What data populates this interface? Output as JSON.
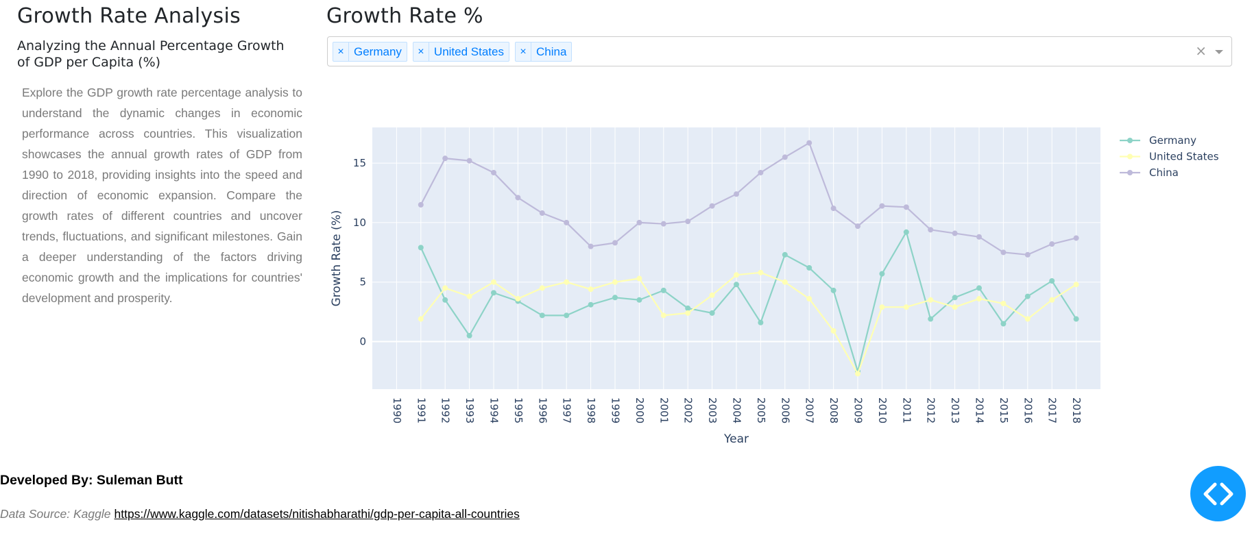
{
  "sidebar": {
    "title": "Growth Rate Analysis",
    "subtitle": "Analyzing the Annual Percentage Growth of GDP per Capita (%)",
    "description": "Explore the GDP growth rate percentage analysis to understand the dynamic changes in economic performance across countries. This visualization showcases the annual growth rates of GDP from 1990 to 2018, providing insights into the speed and direction of economic expansion. Compare the growth rates of different countries and uncover trends, fluctuations, and significant milestones. Gain a deeper understanding of the factors driving economic growth and the implications for countries' development and prosperity."
  },
  "main": {
    "title": "Growth Rate %",
    "selector": {
      "selected": [
        "Germany",
        "United States",
        "China"
      ],
      "remove_glyph": "×",
      "clear_glyph": "×"
    }
  },
  "footer": {
    "developed_by": "Developed By: Suleman Butt",
    "source_label": "Data Source: Kaggle",
    "source_link": "https://www.kaggle.com/datasets/nitishabharathi/gdp-per-capita-all-countries"
  },
  "icons": {
    "fab": "code-brackets-icon",
    "caret": "chevron-down-icon",
    "clear": "close-icon"
  },
  "colors": {
    "germany": "#8dd3c7",
    "united_states": "#ffffb3",
    "china": "#bebada",
    "plot_bg": "#e5ecf6",
    "chip_text": "#007eff",
    "fab": "#119dff"
  },
  "chart_data": {
    "type": "line",
    "xlabel": "Year",
    "ylabel": "Growth Rate (%)",
    "x": [
      1990,
      1991,
      1992,
      1993,
      1994,
      1995,
      1996,
      1997,
      1998,
      1999,
      2000,
      2001,
      2002,
      2003,
      2004,
      2005,
      2006,
      2007,
      2008,
      2009,
      2010,
      2011,
      2012,
      2013,
      2014,
      2015,
      2016,
      2017,
      2018
    ],
    "xlim": [
      1989.0,
      2019.0
    ],
    "ylim": [
      -4.0,
      18.0
    ],
    "yticks": [
      0,
      5,
      10,
      15
    ],
    "grid": true,
    "legend_position": "top-right",
    "series": [
      {
        "name": "Germany",
        "color": "#8dd3c7",
        "x": [
          1991,
          1992,
          1993,
          1994,
          1995,
          1996,
          1997,
          1998,
          1999,
          2000,
          2001,
          2002,
          2003,
          2004,
          2005,
          2006,
          2007,
          2008,
          2009,
          2010,
          2011,
          2012,
          2013,
          2014,
          2015,
          2016,
          2017,
          2018
        ],
        "values": [
          7.9,
          3.5,
          0.5,
          4.1,
          3.4,
          2.2,
          2.2,
          3.1,
          3.7,
          3.5,
          4.3,
          2.8,
          2.4,
          4.8,
          1.6,
          7.3,
          6.2,
          4.3,
          -2.5,
          5.7,
          9.2,
          1.9,
          3.7,
          4.5,
          1.5,
          3.8,
          5.1,
          1.9
        ]
      },
      {
        "name": "United States",
        "color": "#ffffb3",
        "x": [
          1991,
          1992,
          1993,
          1994,
          1995,
          1996,
          1997,
          1998,
          1999,
          2000,
          2001,
          2002,
          2003,
          2004,
          2005,
          2006,
          2007,
          2008,
          2009,
          2010,
          2011,
          2012,
          2013,
          2014,
          2015,
          2016,
          2017,
          2018
        ],
        "values": [
          1.9,
          4.5,
          3.8,
          5.0,
          3.6,
          4.5,
          5.0,
          4.4,
          5.0,
          5.3,
          2.2,
          2.4,
          3.9,
          5.6,
          5.8,
          5.0,
          3.6,
          0.9,
          -2.7,
          2.9,
          2.9,
          3.5,
          2.9,
          3.6,
          3.2,
          1.9,
          3.5,
          4.8
        ]
      },
      {
        "name": "China",
        "color": "#bebada",
        "x": [
          1991,
          1992,
          1993,
          1994,
          1995,
          1996,
          1997,
          1998,
          1999,
          2000,
          2001,
          2002,
          2003,
          2004,
          2005,
          2006,
          2007,
          2008,
          2009,
          2010,
          2011,
          2012,
          2013,
          2014,
          2015,
          2016,
          2017,
          2018
        ],
        "values": [
          11.5,
          15.4,
          15.2,
          14.2,
          12.1,
          10.8,
          10.0,
          8.0,
          8.3,
          10.0,
          9.9,
          10.1,
          11.4,
          12.4,
          14.2,
          15.5,
          16.7,
          11.2,
          9.7,
          11.4,
          11.3,
          9.4,
          9.1,
          8.8,
          7.5,
          7.3,
          8.2,
          8.7
        ]
      }
    ]
  }
}
